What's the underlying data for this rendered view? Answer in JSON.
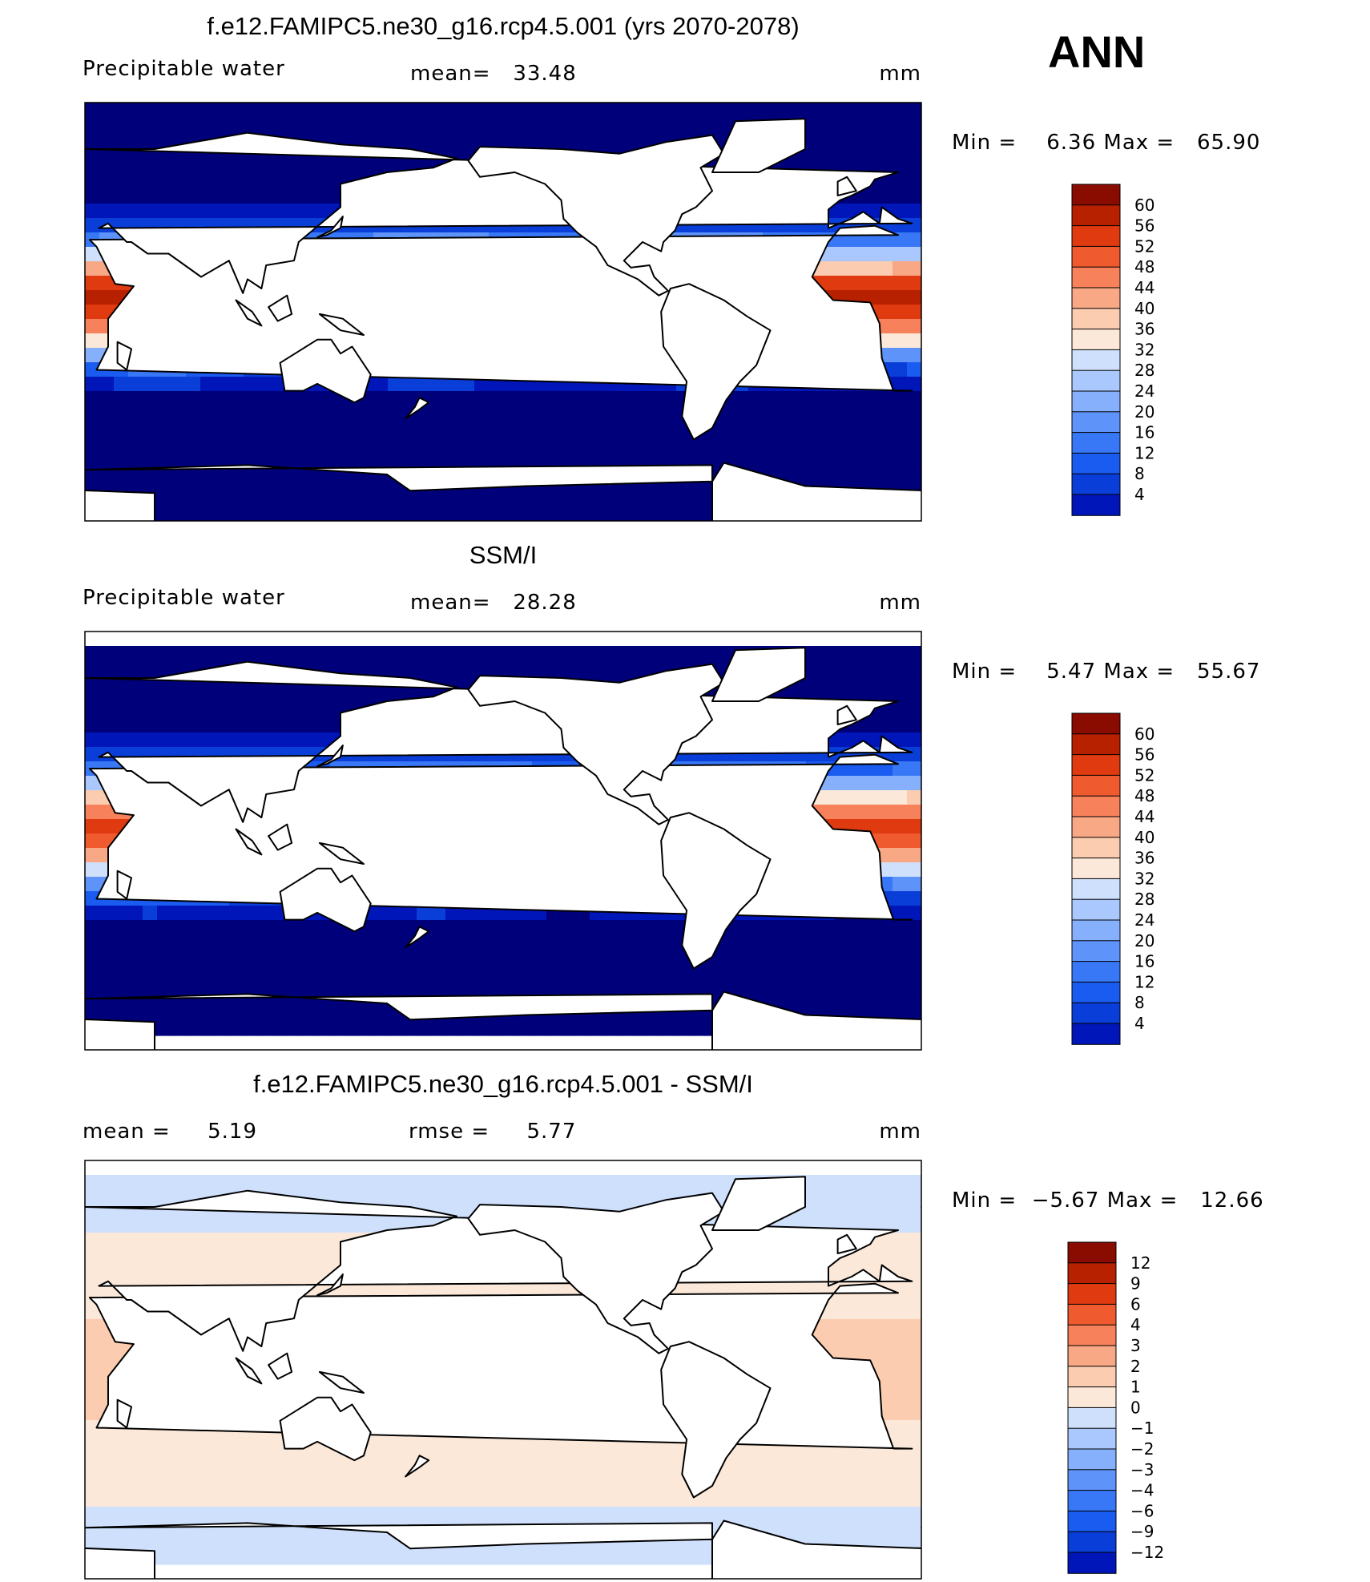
{
  "figure": {
    "season": "ANN",
    "units": "mm"
  },
  "colors": {
    "levels_rgb": [
      "#00007a",
      "#0016b8",
      "#0a3ed8",
      "#1a5cf0",
      "#3877f5",
      "#5e93fa",
      "#86b0fb",
      "#aac8fd",
      "#cfe0fd",
      "#fbe8d8",
      "#fcccb0",
      "#f9a886",
      "#f6815a",
      "#ef5a2e",
      "#e03a10",
      "#b82100",
      "#8a0c00"
    ],
    "continent": "#ffffff",
    "coast": "#000000"
  },
  "chart_data": [
    {
      "type": "heatmap",
      "title": "f.e12.FAMIPC5.ne30_g16.rcp4.5.001 (yrs 2070-2078)",
      "left_label": "Precipitable water",
      "stats_text": "mean=   33.48",
      "units": "mm",
      "minmax_text": "Min =    6.36 Max =   65.90",
      "colorbar": {
        "levels": [
          "60",
          "56",
          "52",
          "48",
          "44",
          "40",
          "36",
          "32",
          "28",
          "24",
          "20",
          "16",
          "12",
          "8",
          "4"
        ]
      },
      "field": "model"
    },
    {
      "type": "heatmap",
      "title": "SSM/I",
      "left_label": "Precipitable water",
      "stats_text": "mean=   28.28",
      "units": "mm",
      "minmax_text": "Min =    5.47 Max =   55.67",
      "colorbar": {
        "levels": [
          "60",
          "56",
          "52",
          "48",
          "44",
          "40",
          "36",
          "32",
          "28",
          "24",
          "20",
          "16",
          "12",
          "8",
          "4"
        ]
      },
      "field": "obs"
    },
    {
      "type": "heatmap",
      "title": "f.e12.FAMIPC5.ne30_g16.rcp4.5.001 - SSM/I",
      "left_label": "mean =     5.19",
      "stats_text": "rmse =     5.77",
      "units": "mm",
      "minmax_text": "Min =  −5.67 Max =   12.66",
      "colorbar": {
        "levels": [
          "12",
          "9",
          "6",
          "4",
          "3",
          "2",
          "1",
          "0",
          "−1",
          "−2",
          "−3",
          "−4",
          "−6",
          "−9",
          "−12"
        ]
      },
      "field": "diff"
    }
  ]
}
